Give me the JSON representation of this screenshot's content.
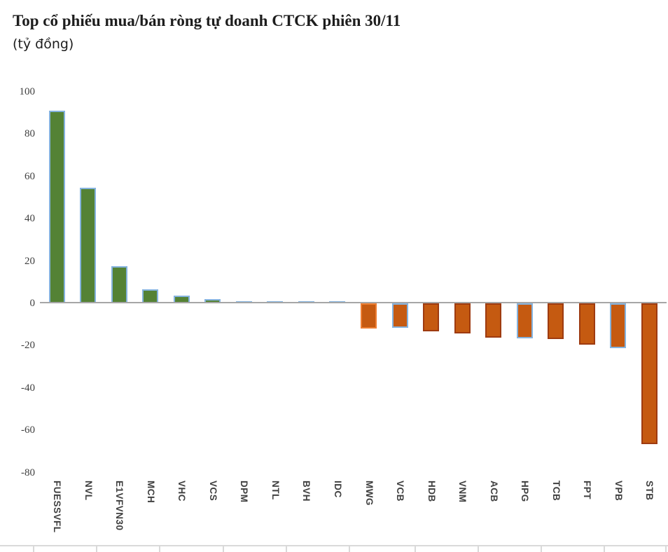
{
  "header": {
    "title": "Top cổ phiếu mua/bán ròng tự doanh CTCK phiên 30/11",
    "subtitle": "(tỷ đồng)"
  },
  "chart_data": {
    "type": "bar",
    "title": "Top cổ phiếu mua/bán ròng tự doanh CTCK phiên 30/11",
    "subtitle": "(tỷ đồng)",
    "unit": "tỷ đồng",
    "categories": [
      "FUESSVFL",
      "NVL",
      "E1VFVN30",
      "MCH",
      "VHC",
      "VCS",
      "DPM",
      "NTL",
      "BVH",
      "IDC",
      "MWG",
      "VCB",
      "HDB",
      "VNM",
      "ACB",
      "HPG",
      "TCB",
      "FPT",
      "VPB",
      "STB"
    ],
    "values": [
      91,
      54.5,
      17.5,
      6.5,
      3.5,
      2,
      1.2,
      0.5,
      0.5,
      0.5,
      -12,
      -11.7,
      -13.3,
      -14.3,
      -16.3,
      -16.6,
      -17,
      -19.6,
      -21.3,
      -66.5
    ],
    "bar_borders": [
      "blue",
      "blue",
      "blue",
      "blue",
      "blue",
      "blue",
      "blue",
      "blue",
      "blue",
      "blue",
      "orange",
      "blue",
      "darkred",
      "darkred",
      "darkred",
      "blue",
      "darkred",
      "darkred",
      "blue",
      "darkred"
    ],
    "ylim": [
      -80,
      100
    ],
    "ytick_step": 20,
    "yticks": [
      100,
      80,
      60,
      40,
      20,
      0,
      -20,
      -40,
      -60,
      -80
    ],
    "grid": "off",
    "legend": "none",
    "xlabel": "",
    "ylabel": "",
    "colors": {
      "positive_fill": "#548235",
      "negative_fill": "#C55A11",
      "border_blue": "#85B3DE",
      "border_orange": "#ED7D31",
      "border_darkred": "#9E3B10",
      "axis_line": "#A6A6A6",
      "tick_label": "#404040",
      "bottom_rule": "#D9D9D9"
    }
  }
}
